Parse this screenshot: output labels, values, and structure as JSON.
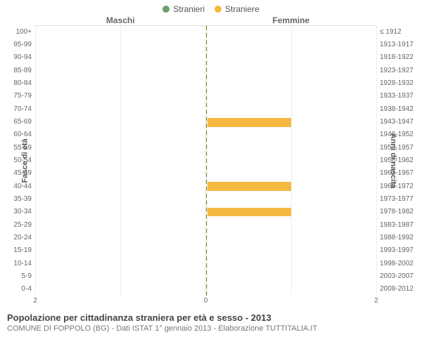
{
  "legend": {
    "male": {
      "label": "Stranieri",
      "color": "#6b9e6b"
    },
    "female": {
      "label": "Straniere",
      "color": "#f5b942"
    }
  },
  "sections": {
    "left": "Maschi",
    "right": "Femmine"
  },
  "axis_titles": {
    "left": "Fasce di età",
    "right": "Anni di nascita"
  },
  "footer": {
    "title": "Popolazione per cittadinanza straniera per età e sesso - 2013",
    "subtitle": "COMUNE DI FOPPOLO (BG) - Dati ISTAT 1° gennaio 2013 - Elaborazione TUTTITALIA.IT"
  },
  "chart": {
    "type": "population-pyramid",
    "background": "#ffffff",
    "grid_color": "#eeeeee",
    "center_line_color": "#808000",
    "xmax": 2,
    "x_ticks_left": [
      2,
      0
    ],
    "x_ticks_right": [
      0,
      2
    ],
    "age_groups": [
      "100+",
      "95-99",
      "90-94",
      "85-89",
      "80-84",
      "75-79",
      "70-74",
      "65-69",
      "60-64",
      "55-59",
      "50-54",
      "45-49",
      "40-44",
      "35-39",
      "30-34",
      "25-29",
      "20-24",
      "15-19",
      "10-14",
      "5-9",
      "0-4"
    ],
    "birth_years": [
      "≤ 1912",
      "1913-1917",
      "1918-1922",
      "1923-1927",
      "1928-1932",
      "1933-1937",
      "1938-1942",
      "1943-1947",
      "1948-1952",
      "1953-1957",
      "1958-1962",
      "1963-1967",
      "1968-1972",
      "1973-1977",
      "1978-1982",
      "1983-1987",
      "1988-1992",
      "1993-1997",
      "1998-2002",
      "2003-2007",
      "2008-2012"
    ],
    "male_values": [
      0,
      0,
      0,
      0,
      0,
      0,
      0,
      0,
      0,
      0,
      0,
      0,
      0,
      0,
      0,
      0,
      0,
      0,
      0,
      0,
      0
    ],
    "female_values": [
      0,
      0,
      0,
      0,
      0,
      0,
      0,
      1,
      0,
      0,
      0,
      0,
      1,
      0,
      1,
      0,
      0,
      0,
      0,
      0,
      0
    ],
    "male_color": "#6b9e6b",
    "female_color": "#f5b942",
    "label_fontsize": 10
  }
}
